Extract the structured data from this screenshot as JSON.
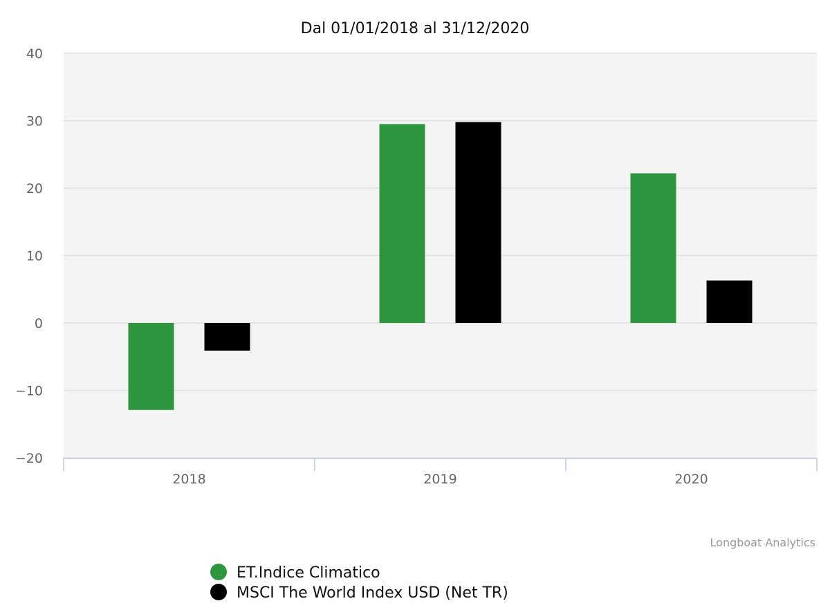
{
  "chart_data": {
    "type": "bar",
    "title": "Dal 01/01/2018 al 31/12/2020",
    "xlabel": "",
    "ylabel": "",
    "categories": [
      "2018",
      "2019",
      "2020"
    ],
    "ylim": [
      -20,
      40
    ],
    "yticks": [
      -20,
      -10,
      0,
      10,
      20,
      30,
      40
    ],
    "ytick_labels": [
      "−20",
      "−10",
      "0",
      "10",
      "20",
      "30",
      "40"
    ],
    "grid": true,
    "legend_position": "bottom-left",
    "series": [
      {
        "name": "ET.Indice Climatico",
        "color": "#2e963f",
        "values": [
          -12.9,
          29.5,
          22.2
        ]
      },
      {
        "name": "MSCI The World Index USD (Net TR)",
        "color": "#000000",
        "values": [
          -4.1,
          29.8,
          6.3
        ]
      }
    ]
  },
  "credit": "Longboat Analytics",
  "colors": {
    "plot_background": "#f4f4f4",
    "gridline": "#e0e0e0",
    "axis_line": "#ccd6eb"
  }
}
